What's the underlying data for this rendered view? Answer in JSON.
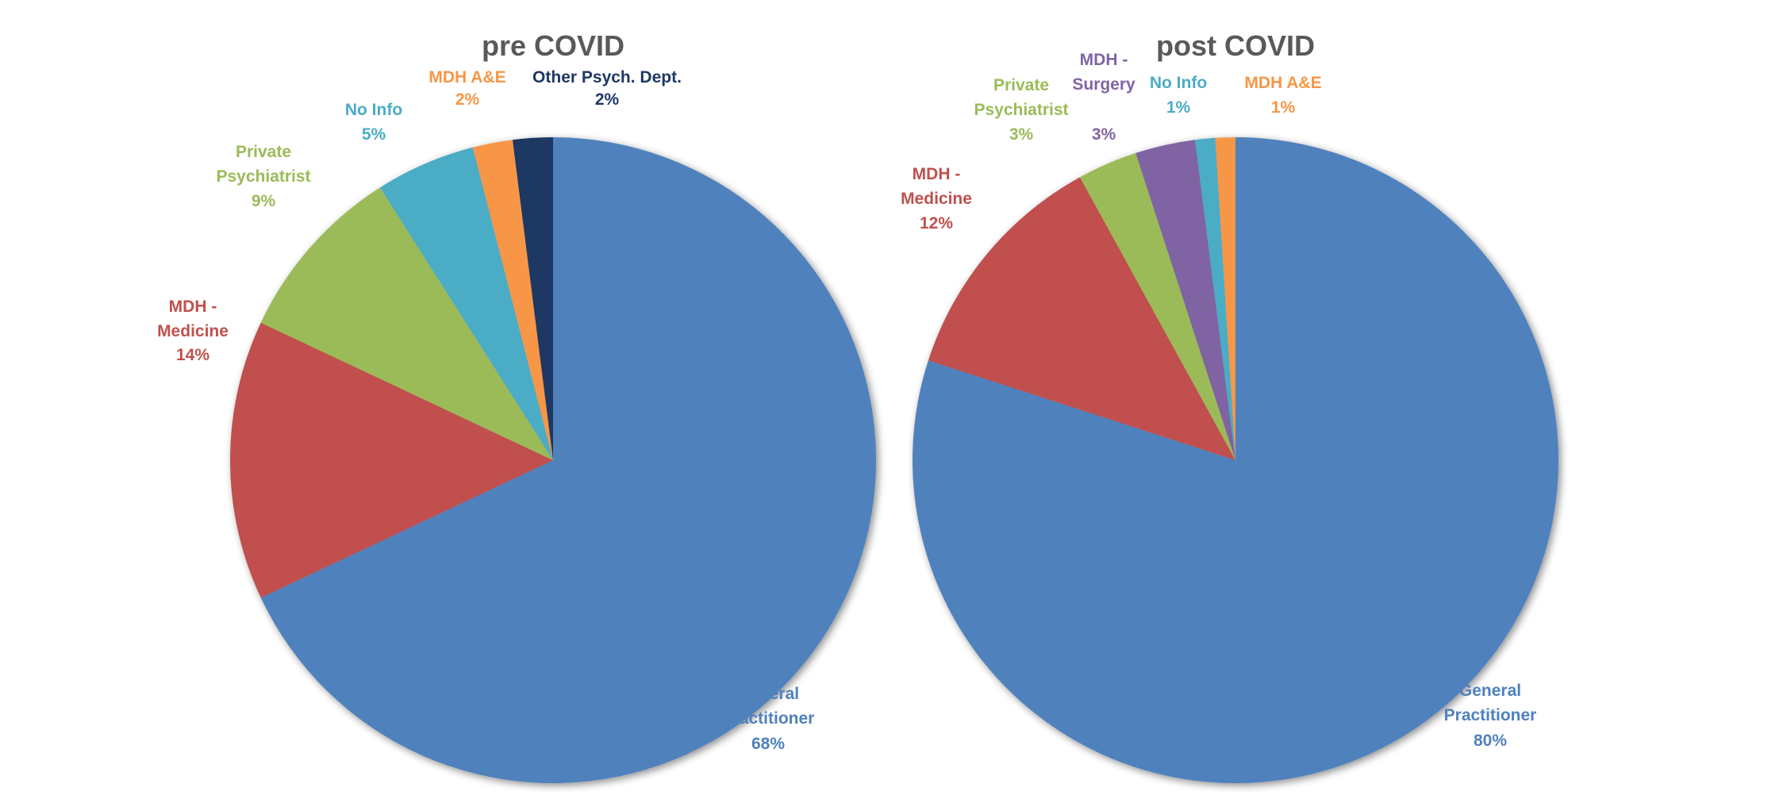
{
  "chart_data": [
    {
      "type": "pie",
      "title": "pre COVID",
      "start": "12 o'clock",
      "direction": "clockwise",
      "slices": [
        {
          "label": "General Practitioner",
          "value": 68,
          "value_label": "68%",
          "color": "#4F81BD"
        },
        {
          "label": "MDH - Medicine",
          "value": 14,
          "value_label": "14%",
          "color": "#C0504D"
        },
        {
          "label": "Private Psychiatrist",
          "value": 9,
          "value_label": "9%",
          "color": "#9BBB59"
        },
        {
          "label": "No Info",
          "value": 5,
          "value_label": "5%",
          "color": "#4BACC6"
        },
        {
          "label": "MDH A&E",
          "value": 2,
          "value_label": "2%",
          "color": "#F79646"
        },
        {
          "label": "Other Psych. Dept.",
          "value": 2,
          "value_label": "2%",
          "color": "#1F3864"
        }
      ]
    },
    {
      "type": "pie",
      "title": "post COVID",
      "start": "12 o'clock",
      "direction": "clockwise",
      "slices": [
        {
          "label": "General Practitioner",
          "value": 80,
          "value_label": "80%",
          "color": "#4F81BD"
        },
        {
          "label": "MDH - Medicine",
          "value": 12,
          "value_label": "12%",
          "color": "#C0504D"
        },
        {
          "label": "Private Psychiatrist",
          "value": 3,
          "value_label": "3%",
          "color": "#9BBB59"
        },
        {
          "label": "MDH - Surgery",
          "value": 3,
          "value_label": "3%",
          "color": "#8064A2"
        },
        {
          "label": "No Info",
          "value": 1,
          "value_label": "1%",
          "color": "#4BACC6"
        },
        {
          "label": "MDH A&E",
          "value": 1,
          "value_label": "1%",
          "color": "#F79646"
        }
      ]
    }
  ]
}
